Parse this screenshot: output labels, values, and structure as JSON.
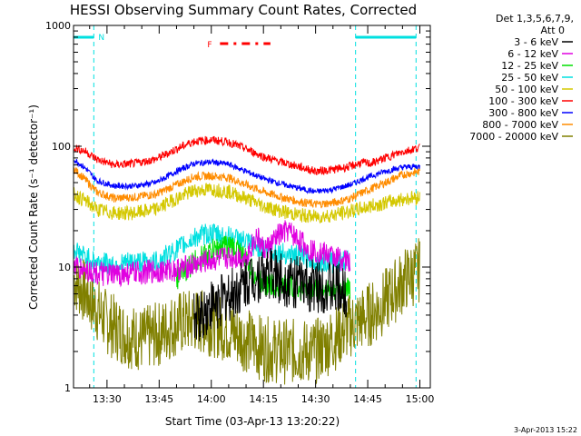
{
  "chart_data": {
    "type": "line",
    "title": "HESSI Observing Summary Count Rates, Corrected",
    "xlabel": "Start Time (03-Apr-13 13:20:22)",
    "ylabel": "Corrected Count Rate (s⁻¹ detector⁻¹)",
    "y_scale": "log",
    "ylim": [
      1,
      1000
    ],
    "y_ticks": [
      {
        "value": 1,
        "label": "1"
      },
      {
        "value": 10,
        "label": "10"
      },
      {
        "value": 100,
        "label": "100"
      },
      {
        "value": 1000,
        "label": "1000"
      }
    ],
    "x_time_start": "13:20:22",
    "xlim_min": [
      20.37,
      123
    ],
    "x_ticks": [
      {
        "t": 30,
        "label": "13:30"
      },
      {
        "t": 45,
        "label": "13:45"
      },
      {
        "t": 60,
        "label": "14:00"
      },
      {
        "t": 75,
        "label": "14:15"
      },
      {
        "t": 90,
        "label": "14:30"
      },
      {
        "t": 105,
        "label": "14:45"
      },
      {
        "t": 120,
        "label": "15:00"
      }
    ],
    "legend_header": [
      "Det 1,3,5,6,7,9,",
      "Att 0"
    ],
    "flags": {
      "night_label": "N",
      "night_bars": [
        [
          20.37,
          26.2
        ],
        [
          101.5,
          118.9
        ]
      ],
      "night_lines": [
        26.2,
        101.5,
        118.9
      ],
      "flare_label": "F",
      "flare_span": [
        62.5,
        77
      ]
    },
    "series": [
      {
        "name": "3 - 6 keV",
        "color": "#000000",
        "points": [
          [
            55,
            3.6
          ],
          [
            60,
            4.8
          ],
          [
            64,
            5.5
          ],
          [
            68,
            6.5
          ],
          [
            71,
            8
          ],
          [
            74,
            8.5
          ],
          [
            77,
            9
          ],
          [
            80,
            8
          ],
          [
            84,
            7.5
          ],
          [
            88,
            7
          ],
          [
            92,
            7
          ],
          [
            96,
            6.5
          ],
          [
            99,
            6
          ]
        ]
      },
      {
        "name": "6 - 12 keV",
        "color": "#e000e0",
        "points": [
          [
            20.5,
            10
          ],
          [
            30,
            8.5
          ],
          [
            40,
            9
          ],
          [
            50,
            9.5
          ],
          [
            58,
            11
          ],
          [
            65,
            12
          ],
          [
            70,
            12
          ],
          [
            73,
            18
          ],
          [
            75,
            14
          ],
          [
            77,
            15
          ],
          [
            79,
            18
          ],
          [
            82,
            20
          ],
          [
            85,
            17
          ],
          [
            88,
            14
          ],
          [
            92,
            13
          ],
          [
            96,
            12
          ],
          [
            100,
            11
          ]
        ]
      },
      {
        "name": "12 - 25 keV",
        "color": "#00e000",
        "points": [
          [
            50,
            8
          ],
          [
            55,
            11
          ],
          [
            60,
            13.5
          ],
          [
            64,
            15
          ],
          [
            68,
            14
          ],
          [
            71,
            10
          ],
          [
            74,
            7.5
          ],
          [
            78,
            7
          ],
          [
            82,
            7
          ],
          [
            86,
            6.5
          ],
          [
            90,
            6.5
          ],
          [
            94,
            6.5
          ],
          [
            97,
            6.5
          ],
          [
            100,
            6.8
          ]
        ]
      },
      {
        "name": "25 - 50 keV",
        "color": "#00e0e0",
        "points": [
          [
            20.5,
            14
          ],
          [
            24,
            12
          ],
          [
            27,
            11
          ],
          [
            32,
            10.5
          ],
          [
            38,
            11
          ],
          [
            44,
            11
          ],
          [
            50,
            14
          ],
          [
            56,
            18
          ],
          [
            60,
            19
          ],
          [
            64,
            18
          ],
          [
            68,
            17
          ],
          [
            72,
            15
          ],
          [
            76,
            14
          ],
          [
            80,
            13
          ],
          [
            84,
            12.5
          ],
          [
            88,
            12
          ],
          [
            92,
            11
          ],
          [
            96,
            11
          ],
          [
            100,
            11.5
          ]
        ]
      },
      {
        "name": "50 - 100 keV",
        "color": "#d4c800",
        "points": [
          [
            20.5,
            40
          ],
          [
            24,
            35
          ],
          [
            27,
            30
          ],
          [
            32,
            28
          ],
          [
            38,
            28
          ],
          [
            44,
            30
          ],
          [
            50,
            37
          ],
          [
            55,
            43
          ],
          [
            60,
            44
          ],
          [
            65,
            42
          ],
          [
            70,
            37
          ],
          [
            75,
            32
          ],
          [
            80,
            29
          ],
          [
            85,
            27
          ],
          [
            90,
            26
          ],
          [
            95,
            27
          ],
          [
            100,
            29
          ],
          [
            104,
            31
          ],
          [
            110,
            34
          ],
          [
            116,
            37
          ],
          [
            120,
            38
          ]
        ]
      },
      {
        "name": "100 - 300 keV",
        "color": "#ff0000",
        "points": [
          [
            20.5,
            98
          ],
          [
            24,
            90
          ],
          [
            27,
            78
          ],
          [
            32,
            70
          ],
          [
            38,
            72
          ],
          [
            44,
            78
          ],
          [
            50,
            95
          ],
          [
            55,
            110
          ],
          [
            60,
            113
          ],
          [
            65,
            108
          ],
          [
            70,
            95
          ],
          [
            75,
            82
          ],
          [
            80,
            74
          ],
          [
            85,
            68
          ],
          [
            90,
            62
          ],
          [
            95,
            64
          ],
          [
            100,
            68
          ],
          [
            103,
            73
          ],
          [
            106,
            72
          ],
          [
            110,
            80
          ],
          [
            115,
            90
          ],
          [
            120,
            98
          ]
        ]
      },
      {
        "name": "300 - 800 keV",
        "color": "#0000ff",
        "points": [
          [
            20.5,
            78
          ],
          [
            24,
            65
          ],
          [
            27,
            52
          ],
          [
            32,
            47
          ],
          [
            38,
            47
          ],
          [
            44,
            50
          ],
          [
            50,
            62
          ],
          [
            55,
            72
          ],
          [
            60,
            74
          ],
          [
            65,
            71
          ],
          [
            70,
            62
          ],
          [
            75,
            54
          ],
          [
            80,
            49
          ],
          [
            85,
            45
          ],
          [
            90,
            42
          ],
          [
            95,
            44
          ],
          [
            100,
            48
          ],
          [
            104,
            54
          ],
          [
            110,
            62
          ],
          [
            115,
            67
          ],
          [
            120,
            68
          ]
        ]
      },
      {
        "name": "800 - 7000 keV",
        "color": "#ff8c00",
        "points": [
          [
            20.5,
            65
          ],
          [
            24,
            52
          ],
          [
            27,
            42
          ],
          [
            32,
            37
          ],
          [
            38,
            38
          ],
          [
            44,
            40
          ],
          [
            50,
            48
          ],
          [
            55,
            56
          ],
          [
            60,
            57
          ],
          [
            65,
            55
          ],
          [
            70,
            48
          ],
          [
            75,
            42
          ],
          [
            80,
            38
          ],
          [
            85,
            35
          ],
          [
            90,
            33
          ],
          [
            95,
            34
          ],
          [
            100,
            37
          ],
          [
            104,
            42
          ],
          [
            110,
            50
          ],
          [
            115,
            58
          ],
          [
            120,
            62
          ]
        ]
      },
      {
        "name": "7000 - 20000 keV",
        "color": "#808000",
        "points": [
          [
            20.5,
            8
          ],
          [
            24,
            6
          ],
          [
            27,
            4.5
          ],
          [
            30,
            3.5
          ],
          [
            35,
            2.8
          ],
          [
            40,
            2.5
          ],
          [
            45,
            2.8
          ],
          [
            50,
            3.4
          ],
          [
            55,
            3.6
          ],
          [
            60,
            3.4
          ],
          [
            65,
            3
          ],
          [
            70,
            2.5
          ],
          [
            75,
            2.1
          ],
          [
            80,
            2
          ],
          [
            85,
            2
          ],
          [
            90,
            2
          ],
          [
            95,
            2.5
          ],
          [
            100,
            3.3
          ],
          [
            104,
            3.8
          ],
          [
            108,
            4.5
          ],
          [
            112,
            6
          ],
          [
            116,
            8
          ],
          [
            120,
            9.5
          ]
        ]
      }
    ]
  },
  "timestamp": "3-Apr-2013 15:22"
}
